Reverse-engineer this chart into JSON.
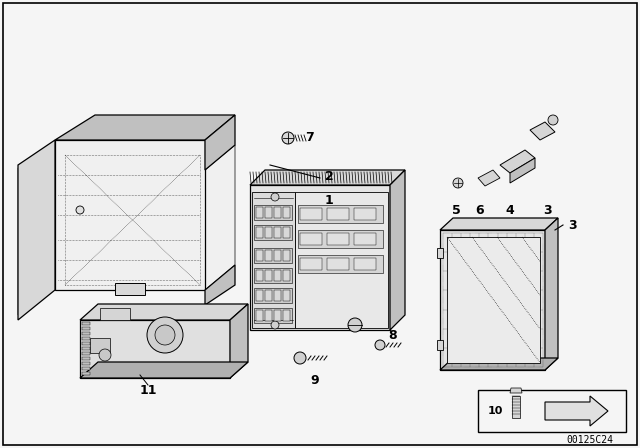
{
  "bg_color": "#f0f0f0",
  "border_color": "#000000",
  "part_number_text": "00125C24",
  "fig_width": 6.4,
  "fig_height": 4.48,
  "dpi": 100
}
